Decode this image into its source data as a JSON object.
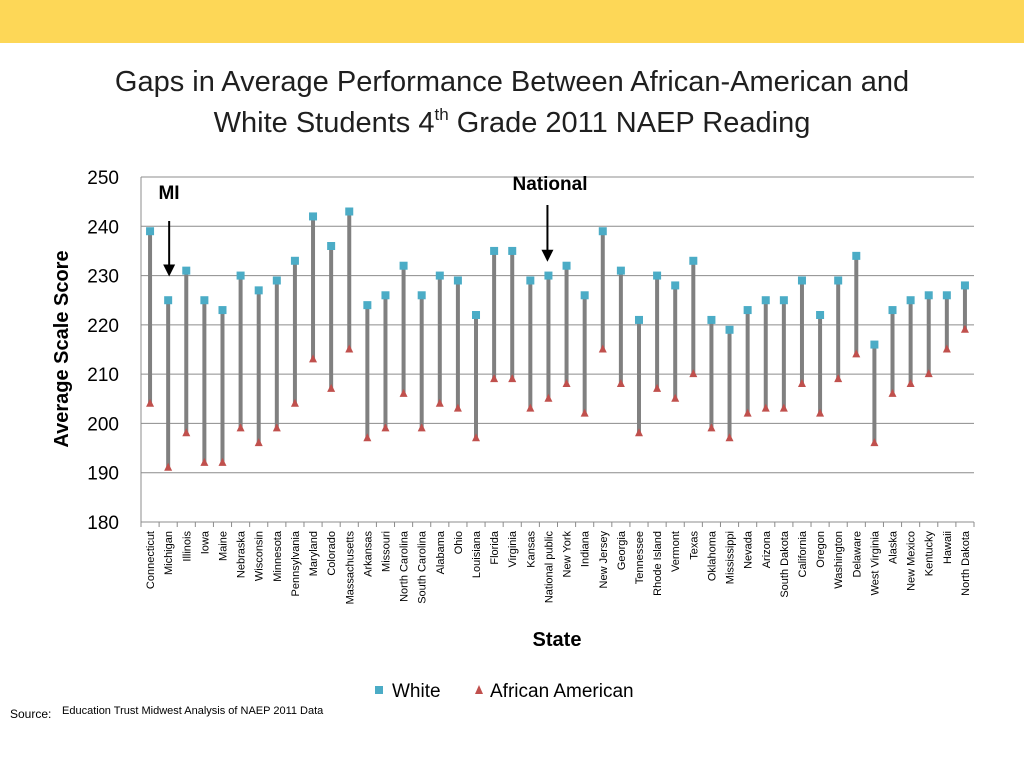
{
  "slide": {
    "title_line1": "Gaps in Average Performance Between African-American and",
    "title_line2_pre": "White Students 4",
    "title_line2_sup": "th",
    "title_line2_post": " Grade 2011 NAEP Reading",
    "source_label": "Source:",
    "source_text": "Education Trust Midwest Analysis of NAEP 2011 Data",
    "band_color": "#fdd757"
  },
  "chart_data": {
    "type": "scatter",
    "subtype": "high-low dot plot",
    "xlabel": "State",
    "ylabel": "Average Scale Score",
    "ylim": [
      180,
      250
    ],
    "yticks": [
      180,
      190,
      200,
      210,
      220,
      230,
      240,
      250
    ],
    "grid": true,
    "legend_position": "bottom",
    "categories": [
      "Connecticut",
      "Michigan",
      "Illinois",
      "Iowa",
      "Maine",
      "Nebraska",
      "Wisconsin",
      "Minnesota",
      "Pennsylvania",
      "Maryland",
      "Colorado",
      "Massachusetts",
      "Arkansas",
      "Missouri",
      "North Carolina",
      "South Carolina",
      "Alabama",
      "Ohio",
      "Louisiana",
      "Florida",
      "Virginia",
      "Kansas",
      "National public",
      "New York",
      "Indiana",
      "New Jersey",
      "Georgia",
      "Tennessee",
      "Rhode Island",
      "Vermont",
      "Texas",
      "Oklahoma",
      "Mississippi",
      "Nevada",
      "Arizona",
      "South Dakota",
      "California",
      "Oregon",
      "Washington",
      "Delaware",
      "West Virginia",
      "Alaska",
      "New Mexico",
      "Kentucky",
      "Hawaii",
      "North Dakota"
    ],
    "series": [
      {
        "name": "White",
        "color": "#4bacc6",
        "marker": "square",
        "values": [
          239,
          225,
          231,
          225,
          223,
          230,
          227,
          229,
          233,
          242,
          236,
          243,
          224,
          226,
          232,
          226,
          230,
          229,
          222,
          235,
          235,
          229,
          230,
          232,
          226,
          239,
          231,
          221,
          230,
          228,
          233,
          221,
          219,
          223,
          225,
          225,
          229,
          222,
          229,
          234,
          216,
          223,
          225,
          226,
          226,
          228
        ]
      },
      {
        "name": "African American",
        "color": "#c0504d",
        "marker": "triangle",
        "values": [
          204,
          191,
          198,
          192,
          192,
          199,
          196,
          199,
          204,
          213,
          207,
          215,
          197,
          199,
          206,
          199,
          204,
          203,
          197,
          209,
          209,
          203,
          205,
          208,
          202,
          215,
          208,
          198,
          207,
          205,
          210,
          199,
          197,
          202,
          203,
          203,
          208,
          202,
          209,
          214,
          196,
          206,
          208,
          210,
          215,
          219
        ]
      }
    ],
    "annotations": [
      {
        "text": "MI",
        "target": "Michigan",
        "value": 229
      },
      {
        "text": "National",
        "target": "National public",
        "value": 232
      }
    ],
    "colors": {
      "grid": "#8c8c8c",
      "range_line": "#808080",
      "axis": "#8c8c8c"
    }
  }
}
